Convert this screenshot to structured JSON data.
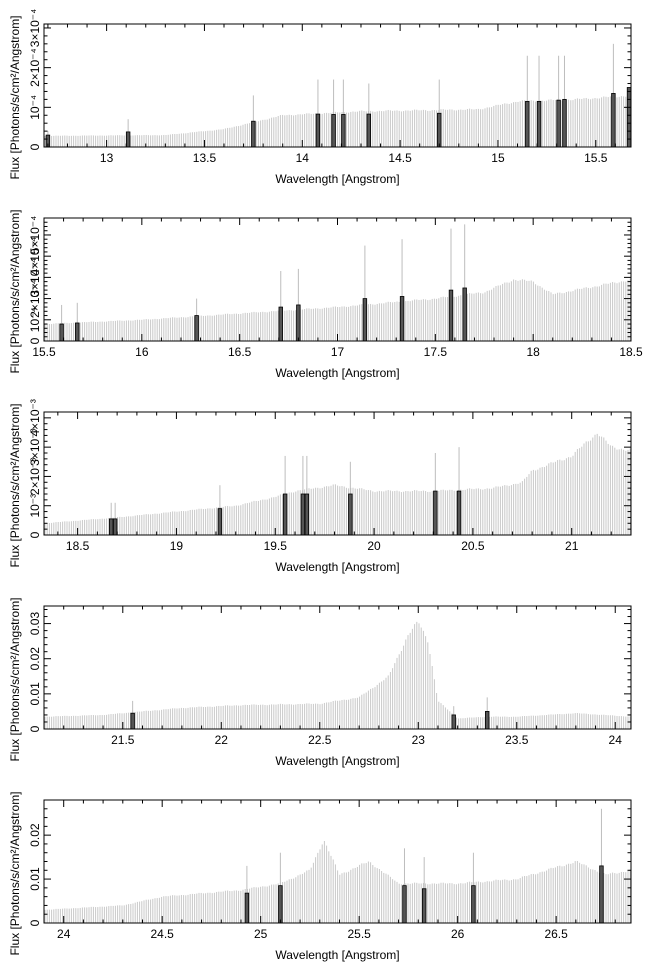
{
  "chart_data": [
    {
      "type": "line",
      "xlabel": "Wavelength [Angstrom]",
      "ylabel": "Flux [Photons/s/cm²/Angstrom]",
      "xlim": [
        12.68,
        15.68
      ],
      "ylim": [
        0,
        0.00031
      ],
      "x_ticks": [
        "13",
        "13.5",
        "14",
        "14.5",
        "15",
        "15.5"
      ],
      "x_tick_values": [
        13,
        13.5,
        14,
        14.5,
        15,
        15.5
      ],
      "y_ticks": [
        "0",
        "10⁻⁴",
        "2×10⁻⁴",
        "3×10⁻⁴"
      ],
      "y_tick_values": [
        0,
        0.0001,
        0.0002,
        0.0003
      ],
      "continuum": {
        "x": [
          12.68,
          13.3,
          13.6,
          13.9,
          14.3,
          14.9,
          15.1,
          15.4,
          15.68
        ],
        "y": [
          2.8e-05,
          3e-05,
          4.5e-05,
          8e-05,
          9e-05,
          9.5e-05,
          0.000115,
          0.00012,
          0.00013
        ]
      },
      "lines": [
        {
          "x": 12.7,
          "y": 3e-05,
          "top": 4e-05
        },
        {
          "x": 13.11,
          "y": 3.8e-05,
          "top": 7e-05
        },
        {
          "x": 13.75,
          "y": 6.5e-05,
          "top": 0.00013
        },
        {
          "x": 14.08,
          "y": 8.3e-05,
          "top": 0.00017
        },
        {
          "x": 14.16,
          "y": 8.2e-05,
          "top": 0.00017
        },
        {
          "x": 14.21,
          "y": 8.2e-05,
          "top": 0.00017
        },
        {
          "x": 14.34,
          "y": 8.3e-05,
          "top": 0.00016
        },
        {
          "x": 14.7,
          "y": 8.5e-05,
          "top": 0.00017
        },
        {
          "x": 15.15,
          "y": 0.000115,
          "top": 0.00023
        },
        {
          "x": 15.21,
          "y": 0.000115,
          "top": 0.00023
        },
        {
          "x": 15.31,
          "y": 0.000118,
          "top": 0.00023
        },
        {
          "x": 15.34,
          "y": 0.00012,
          "top": 0.00023
        },
        {
          "x": 15.59,
          "y": 0.000135,
          "top": 0.00026
        },
        {
          "x": 15.67,
          "y": 0.00015,
          "top": 0.00015
        }
      ]
    },
    {
      "type": "line",
      "xlabel": "Wavelength [Angstrom]",
      "ylabel": "Flux [Photons/s/cm²/Angstrom]",
      "xlim": [
        15.5,
        18.5
      ],
      "ylim": [
        0,
        0.00058
      ],
      "x_ticks": [
        "15.5",
        "16",
        "16.5",
        "17",
        "17.5",
        "18",
        "18.5"
      ],
      "x_tick_values": [
        15.5,
        16,
        16.5,
        17,
        17.5,
        18,
        18.5
      ],
      "y_ticks": [
        "0",
        "10⁻⁴",
        "2×10⁻⁴",
        "3×10⁻⁴",
        "4×10⁻⁴",
        "5×10⁻⁴"
      ],
      "y_tick_values": [
        0,
        0.0001,
        0.0002,
        0.0003,
        0.0004,
        0.0005
      ],
      "continuum": {
        "x": [
          15.5,
          16.0,
          16.5,
          17.0,
          17.5,
          17.75,
          17.9,
          18.0,
          18.1,
          18.5
        ],
        "y": [
          8e-05,
          0.0001,
          0.00013,
          0.00016,
          0.0002,
          0.00023,
          0.00029,
          0.00028,
          0.00022,
          0.00029
        ]
      },
      "lines": [
        {
          "x": 15.59,
          "y": 8e-05,
          "top": 0.00017
        },
        {
          "x": 15.67,
          "y": 8.5e-05,
          "top": 0.00018
        },
        {
          "x": 16.28,
          "y": 0.00012,
          "top": 0.0002
        },
        {
          "x": 16.71,
          "y": 0.00016,
          "top": 0.00033
        },
        {
          "x": 16.8,
          "y": 0.00017,
          "top": 0.00034
        },
        {
          "x": 17.14,
          "y": 0.0002,
          "top": 0.00045
        },
        {
          "x": 17.33,
          "y": 0.00021,
          "top": 0.00048
        },
        {
          "x": 17.58,
          "y": 0.00024,
          "top": 0.00053
        },
        {
          "x": 17.65,
          "y": 0.00025,
          "top": 0.00055
        }
      ]
    },
    {
      "type": "line",
      "xlabel": "Wavelength [Angstrom]",
      "ylabel": "Flux [Photons/s/cm²/Angstrom]",
      "xlim": [
        18.33,
        21.3
      ],
      "ylim": [
        0,
        0.0042
      ],
      "x_ticks": [
        "18.5",
        "19",
        "19.5",
        "20",
        "20.5",
        "21"
      ],
      "x_tick_values": [
        18.5,
        19,
        19.5,
        20,
        20.5,
        21
      ],
      "y_ticks": [
        "0",
        "10⁻³",
        "2×10⁻³",
        "3×10⁻³",
        "4×10⁻³"
      ],
      "y_tick_values": [
        0,
        0.001,
        0.002,
        0.003,
        0.004
      ],
      "continuum": {
        "x": [
          18.33,
          18.7,
          19.0,
          19.3,
          19.5,
          19.6,
          19.8,
          20.0,
          20.3,
          20.6,
          20.75,
          20.8,
          21.0,
          21.13,
          21.2,
          21.3
        ],
        "y": [
          0.0004,
          0.0006,
          0.0008,
          0.001,
          0.0013,
          0.0015,
          0.0017,
          0.0015,
          0.0015,
          0.0016,
          0.0018,
          0.0022,
          0.0027,
          0.0035,
          0.003,
          0.0029
        ]
      },
      "lines": [
        {
          "x": 18.67,
          "y": 0.00055,
          "top": 0.0011
        },
        {
          "x": 18.69,
          "y": 0.00055,
          "top": 0.0011
        },
        {
          "x": 19.22,
          "y": 0.0009,
          "top": 0.0017
        },
        {
          "x": 19.55,
          "y": 0.0014,
          "top": 0.0027
        },
        {
          "x": 19.64,
          "y": 0.0014,
          "top": 0.0027
        },
        {
          "x": 19.66,
          "y": 0.0014,
          "top": 0.0027
        },
        {
          "x": 19.88,
          "y": 0.0014,
          "top": 0.0025
        },
        {
          "x": 20.31,
          "y": 0.0015,
          "top": 0.0028
        },
        {
          "x": 20.43,
          "y": 0.0015,
          "top": 0.003
        }
      ]
    },
    {
      "type": "line",
      "xlabel": "Wavelength [Angstrom]",
      "ylabel": "Flux [Photons/s/cm²/Angstrom]",
      "xlim": [
        21.1,
        24.08
      ],
      "ylim": [
        0,
        0.035
      ],
      "x_ticks": [
        "21.5",
        "22",
        "22.5",
        "23",
        "23.5",
        "24"
      ],
      "x_tick_values": [
        21.5,
        22,
        22.5,
        23,
        23.5,
        24
      ],
      "y_ticks": [
        "0",
        "0.01",
        "0.02",
        "0.03"
      ],
      "y_tick_values": [
        0,
        0.01,
        0.02,
        0.03
      ],
      "continuum": {
        "x": [
          21.1,
          21.4,
          21.8,
          22.1,
          22.5,
          22.7,
          22.85,
          22.95,
          23.0,
          23.05,
          23.1,
          23.2,
          23.35,
          23.5,
          23.8,
          24.08
        ],
        "y": [
          0.0035,
          0.004,
          0.006,
          0.0068,
          0.0072,
          0.009,
          0.015,
          0.027,
          0.0305,
          0.025,
          0.008,
          0.003,
          0.0035,
          0.0035,
          0.0045,
          0.0035
        ]
      },
      "lines": [
        {
          "x": 21.55,
          "y": 0.0045,
          "top": 0.008
        },
        {
          "x": 23.18,
          "y": 0.004,
          "top": 0.0065
        },
        {
          "x": 23.35,
          "y": 0.005,
          "top": 0.009
        }
      ]
    },
    {
      "type": "line",
      "xlabel": "Wavelength [Angstrom]",
      "ylabel": "Flux [Photons/s/cm²/Angstrom]",
      "xlim": [
        23.9,
        26.88
      ],
      "ylim": [
        0,
        0.028
      ],
      "x_ticks": [
        "24",
        "24.5",
        "25",
        "25.5",
        "26",
        "26.5"
      ],
      "x_tick_values": [
        24,
        24.5,
        25,
        25.5,
        26,
        26.5
      ],
      "y_ticks": [
        "0",
        "0.01",
        "0.02"
      ],
      "y_tick_values": [
        0,
        0.01,
        0.02
      ],
      "continuum": {
        "x": [
          23.9,
          24.3,
          24.5,
          24.9,
          25.1,
          25.25,
          25.32,
          25.4,
          25.55,
          25.7,
          26.0,
          26.3,
          26.6,
          26.75,
          26.88
        ],
        "y": [
          0.003,
          0.004,
          0.006,
          0.0075,
          0.009,
          0.012,
          0.019,
          0.011,
          0.014,
          0.009,
          0.009,
          0.01,
          0.014,
          0.011,
          0.012
        ]
      },
      "lines": [
        {
          "x": 24.93,
          "y": 0.0068,
          "top": 0.013
        },
        {
          "x": 25.1,
          "y": 0.0085,
          "top": 0.016
        },
        {
          "x": 25.73,
          "y": 0.0085,
          "top": 0.017
        },
        {
          "x": 25.83,
          "y": 0.0078,
          "top": 0.015
        },
        {
          "x": 26.08,
          "y": 0.0085,
          "top": 0.016
        },
        {
          "x": 26.73,
          "y": 0.013,
          "top": 0.026
        }
      ]
    }
  ]
}
